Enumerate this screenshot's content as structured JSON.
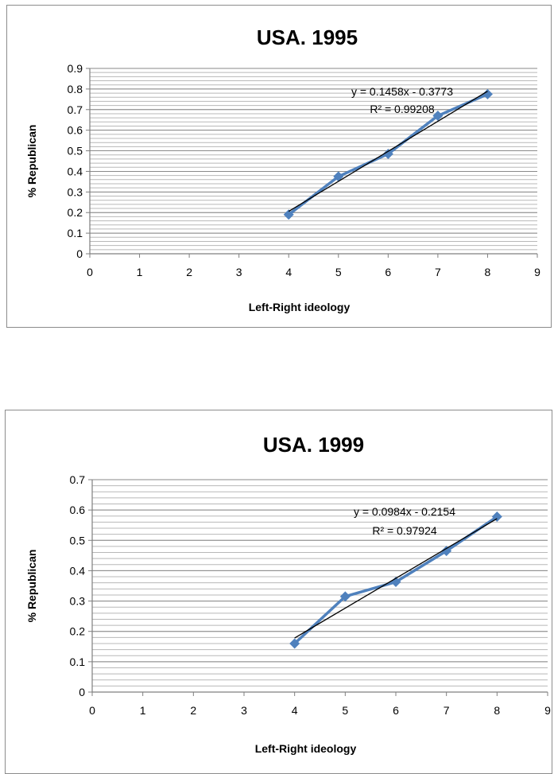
{
  "chart_data": [
    {
      "type": "scatter",
      "title": "USA. 1995",
      "xlabel": "Left-Right ideology",
      "ylabel": "% Republican",
      "xlim": [
        0,
        9
      ],
      "ylim": [
        0,
        0.9
      ],
      "x_ticks": [
        "0",
        "1",
        "2",
        "3",
        "4",
        "5",
        "6",
        "7",
        "8",
        "9"
      ],
      "y_ticks": [
        "0",
        "0.1",
        "0.2",
        "0.3",
        "0.4",
        "0.5",
        "0.6",
        "0.7",
        "0.8",
        "0.9"
      ],
      "grid": true,
      "series": [
        {
          "x": [
            4,
            5,
            6,
            7,
            8
          ],
          "y": [
            0.19,
            0.375,
            0.485,
            0.67,
            0.775
          ],
          "color": "#4f81bd",
          "marker": "diamond",
          "connected": true
        }
      ],
      "trendline": {
        "type": "linear",
        "slope": 0.1458,
        "intercept": -0.3773,
        "x_range": [
          4,
          8
        ],
        "color": "#000000",
        "equation": "y = 0.1458x - 0.3773",
        "r_squared": "R² = 0.99208"
      }
    },
    {
      "type": "scatter",
      "title": "USA. 1999",
      "xlabel": "Left-Right ideology",
      "ylabel": "% Republican",
      "xlim": [
        0,
        9
      ],
      "ylim": [
        0,
        0.7
      ],
      "x_ticks": [
        "0",
        "1",
        "2",
        "3",
        "4",
        "5",
        "6",
        "7",
        "8",
        "9"
      ],
      "y_ticks": [
        "0",
        "0.1",
        "0.2",
        "0.3",
        "0.4",
        "0.5",
        "0.6",
        "0.7"
      ],
      "grid": true,
      "series": [
        {
          "x": [
            4,
            5,
            6,
            7,
            8
          ],
          "y": [
            0.16,
            0.315,
            0.363,
            0.465,
            0.578
          ],
          "color": "#4f81bd",
          "marker": "diamond",
          "connected": true
        }
      ],
      "trendline": {
        "type": "linear",
        "slope": 0.0984,
        "intercept": -0.2154,
        "x_range": [
          4,
          8
        ],
        "color": "#000000",
        "equation": "y = 0.0984x - 0.2154",
        "r_squared": "R² = 0.97924"
      }
    }
  ]
}
